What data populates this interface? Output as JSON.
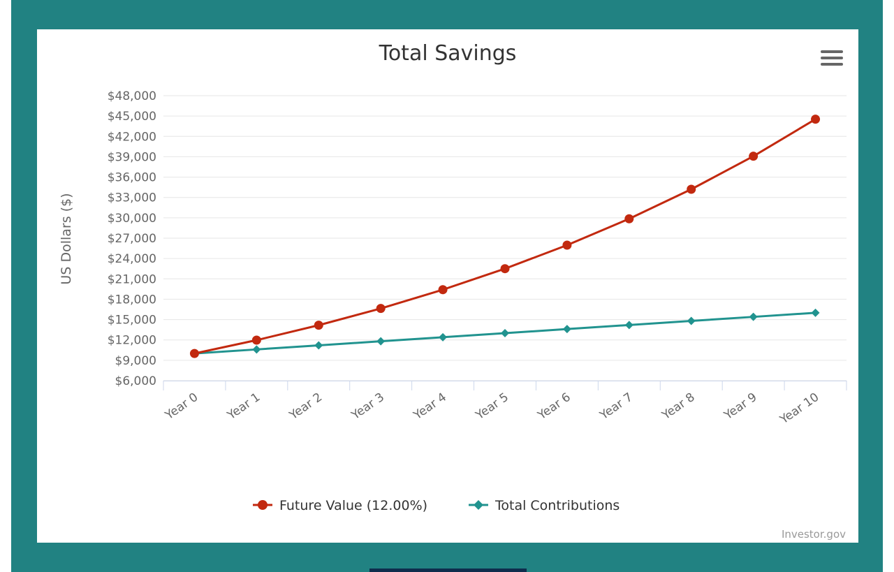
{
  "colors": {
    "page_background": "#218282",
    "card_background": "#ffffff",
    "future_value": "#c2290f",
    "contributions": "#21938f",
    "grid": "#e6e6e6",
    "axis_text": "#666666",
    "title_text": "#333333"
  },
  "menu": {
    "icon": "hamburger-menu-icon"
  },
  "credit": "Investor.gov",
  "chart_data": {
    "type": "line",
    "title": "Total Savings",
    "ylabel": "US Dollars ($)",
    "xlabel": "",
    "categories": [
      "Year 0",
      "Year 1",
      "Year 2",
      "Year 3",
      "Year 4",
      "Year 5",
      "Year 6",
      "Year 7",
      "Year 8",
      "Year 9",
      "Year 10"
    ],
    "ylim": [
      6000,
      48000
    ],
    "yticks": [
      6000,
      9000,
      12000,
      15000,
      18000,
      21000,
      24000,
      27000,
      30000,
      33000,
      36000,
      39000,
      42000,
      45000,
      48000
    ],
    "ytick_labels": [
      "$6,000",
      "$9,000",
      "$12,000",
      "$15,000",
      "$18,000",
      "$21,000",
      "$24,000",
      "$27,000",
      "$30,000",
      "$33,000",
      "$36,000",
      "$39,000",
      "$42,000",
      "$45,000",
      "$48,000"
    ],
    "grid": true,
    "legend_position": "bottom-center",
    "series": [
      {
        "name": "Future Value (12.00%)",
        "marker": "circle",
        "values": [
          10000,
          11968,
          14172,
          16640,
          19405,
          22502,
          25970,
          29855,
          34205,
          39077,
          44534
        ]
      },
      {
        "name": "Total Contributions",
        "marker": "diamond",
        "values": [
          10000,
          10600,
          11200,
          11800,
          12400,
          13000,
          13600,
          14200,
          14800,
          15400,
          16000
        ]
      }
    ]
  }
}
